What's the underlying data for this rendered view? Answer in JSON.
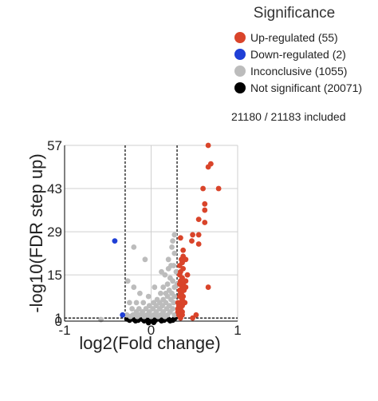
{
  "legend": {
    "title": "Significance",
    "items": [
      {
        "label": "Up-regulated (55)",
        "color": "#d9442a"
      },
      {
        "label": "Down-regulated (2)",
        "color": "#1f3fd6"
      },
      {
        "label": "Inconclusive (1055)",
        "color": "#bcbcbc"
      },
      {
        "label": "Not significant (20071)",
        "color": "#000000"
      }
    ]
  },
  "included_text": "21180 / 21183 included",
  "chart_data": {
    "type": "scatter",
    "xlabel": "log2(Fold change)",
    "ylabel": "-log10(FDR step up)",
    "xlim": [
      -1,
      1
    ],
    "ylim": [
      0,
      57
    ],
    "x_ticks": [
      "-1",
      "0",
      "1"
    ],
    "y_ticks": [
      "0",
      "1",
      "15",
      "29",
      "43",
      "57"
    ],
    "y_tick_values": [
      0,
      1,
      15,
      29,
      43,
      57
    ],
    "grid": true,
    "thresholds": {
      "x": [
        -0.3,
        0.3
      ],
      "y": 1
    },
    "series": [
      {
        "name": "Up-regulated (55)",
        "color": "#d9442a",
        "points": [
          [
            0.66,
            57
          ],
          [
            0.69,
            51
          ],
          [
            0.66,
            50
          ],
          [
            0.78,
            43
          ],
          [
            0.6,
            43
          ],
          [
            0.62,
            38
          ],
          [
            0.62,
            36
          ],
          [
            0.55,
            33
          ],
          [
            0.62,
            32
          ],
          [
            0.55,
            28
          ],
          [
            0.48,
            28
          ],
          [
            0.47,
            26
          ],
          [
            0.55,
            25
          ],
          [
            0.34,
            27
          ],
          [
            0.37,
            23
          ],
          [
            0.37,
            21
          ],
          [
            0.4,
            20
          ],
          [
            0.36,
            19
          ],
          [
            0.33,
            18
          ],
          [
            0.37,
            17
          ],
          [
            0.34,
            16
          ],
          [
            0.42,
            15
          ],
          [
            0.33,
            15
          ],
          [
            0.36,
            14
          ],
          [
            0.4,
            13
          ],
          [
            0.34,
            13
          ],
          [
            0.37,
            12
          ],
          [
            0.33,
            12
          ],
          [
            0.4,
            11
          ],
          [
            0.36,
            11
          ],
          [
            0.33,
            10
          ],
          [
            0.38,
            10
          ],
          [
            0.35,
            9
          ],
          [
            0.34,
            9
          ],
          [
            0.37,
            8
          ],
          [
            0.33,
            8
          ],
          [
            0.36,
            7
          ],
          [
            0.34,
            6
          ],
          [
            0.39,
            6
          ],
          [
            0.32,
            5
          ],
          [
            0.36,
            5
          ],
          [
            0.34,
            4
          ],
          [
            0.31,
            4
          ],
          [
            0.33,
            3
          ],
          [
            0.36,
            3
          ],
          [
            0.31,
            3
          ],
          [
            0.33,
            2
          ],
          [
            0.36,
            2
          ],
          [
            0.32,
            2
          ],
          [
            0.34,
            1
          ],
          [
            0.48,
            1
          ],
          [
            0.52,
            2
          ],
          [
            0.66,
            11
          ],
          [
            0.31,
            6
          ],
          [
            0.35,
            20
          ]
        ]
      },
      {
        "name": "Down-regulated (2)",
        "color": "#1f3fd6",
        "points": [
          [
            -0.42,
            26
          ],
          [
            -0.33,
            2
          ]
        ]
      },
      {
        "name": "Inconclusive (1055)",
        "color": "#bcbcbc",
        "points": [
          [
            0.27,
            28
          ],
          [
            0.24,
            24
          ],
          [
            0.27,
            22
          ],
          [
            0.2,
            20
          ],
          [
            0.23,
            18
          ],
          [
            0.26,
            18
          ],
          [
            0.2,
            17
          ],
          [
            0.16,
            15
          ],
          [
            0.22,
            14
          ],
          [
            0.25,
            13
          ],
          [
            0.19,
            12
          ],
          [
            0.27,
            11
          ],
          [
            0.14,
            11
          ],
          [
            0.21,
            10
          ],
          [
            0.24,
            9
          ],
          [
            0.17,
            9
          ],
          [
            0.11,
            9
          ],
          [
            0.27,
            8
          ],
          [
            0.19,
            8
          ],
          [
            0.14,
            7
          ],
          [
            0.23,
            7
          ],
          [
            0.07,
            7
          ],
          [
            0.26,
            6
          ],
          [
            0.17,
            6
          ],
          [
            0.1,
            6
          ],
          [
            0.03,
            6
          ],
          [
            0.21,
            5
          ],
          [
            0.13,
            5
          ],
          [
            0.06,
            5
          ],
          [
            -0.02,
            5
          ],
          [
            0.25,
            4
          ],
          [
            0.18,
            4
          ],
          [
            0.1,
            4
          ],
          [
            0.02,
            4
          ],
          [
            -0.06,
            4
          ],
          [
            0.22,
            3
          ],
          [
            0.14,
            3
          ],
          [
            0.06,
            3
          ],
          [
            -0.02,
            3
          ],
          [
            -0.1,
            3
          ],
          [
            -0.17,
            3
          ],
          [
            0.27,
            2
          ],
          [
            0.19,
            2
          ],
          [
            0.11,
            2
          ],
          [
            0.03,
            2
          ],
          [
            -0.05,
            2
          ],
          [
            -0.13,
            2
          ],
          [
            -0.21,
            2
          ],
          [
            -0.28,
            2
          ],
          [
            0.16,
            1.5
          ],
          [
            0.08,
            1.5
          ],
          [
            0,
            1.5
          ],
          [
            -0.08,
            1.5
          ],
          [
            -0.16,
            1.5
          ],
          [
            -0.24,
            1.5
          ],
          [
            -0.2,
            24
          ],
          [
            -0.07,
            20
          ],
          [
            -0.27,
            13
          ],
          [
            -0.2,
            11
          ],
          [
            -0.13,
            9
          ],
          [
            -0.25,
            6
          ],
          [
            -0.17,
            6
          ],
          [
            -0.09,
            6
          ],
          [
            -0.22,
            4
          ],
          [
            -0.14,
            4
          ],
          [
            0.29,
            16
          ],
          [
            0.25,
            26
          ],
          [
            0.12,
            16
          ],
          [
            0.04,
            11
          ],
          [
            -0.03,
            8
          ],
          [
            -0.58,
            0.5
          ],
          [
            0.3,
            12
          ]
        ]
      },
      {
        "name": "Not significant (20071)",
        "color": "#000000",
        "points": [
          [
            -0.2,
            0.6
          ],
          [
            -0.15,
            0.3
          ],
          [
            -0.1,
            0.6
          ],
          [
            -0.05,
            0.3
          ],
          [
            0,
            0.6
          ],
          [
            0.05,
            0.3
          ],
          [
            0.1,
            0.6
          ],
          [
            0.15,
            0.3
          ],
          [
            0.2,
            0.6
          ],
          [
            0.25,
            0.3
          ],
          [
            -0.25,
            0.3
          ],
          [
            -0.18,
            0.1
          ],
          [
            -0.08,
            0.1
          ],
          [
            0.02,
            0.1
          ],
          [
            0.12,
            0.1
          ],
          [
            0.22,
            0.1
          ],
          [
            -0.03,
            -0.5
          ],
          [
            0.03,
            -0.4
          ],
          [
            -0.12,
            0.9
          ],
          [
            0.08,
            0.9
          ],
          [
            0.17,
            0.9
          ],
          [
            -0.22,
            0.9
          ],
          [
            0.27,
            0.8
          ],
          [
            -0.28,
            0.7
          ]
        ]
      }
    ]
  }
}
